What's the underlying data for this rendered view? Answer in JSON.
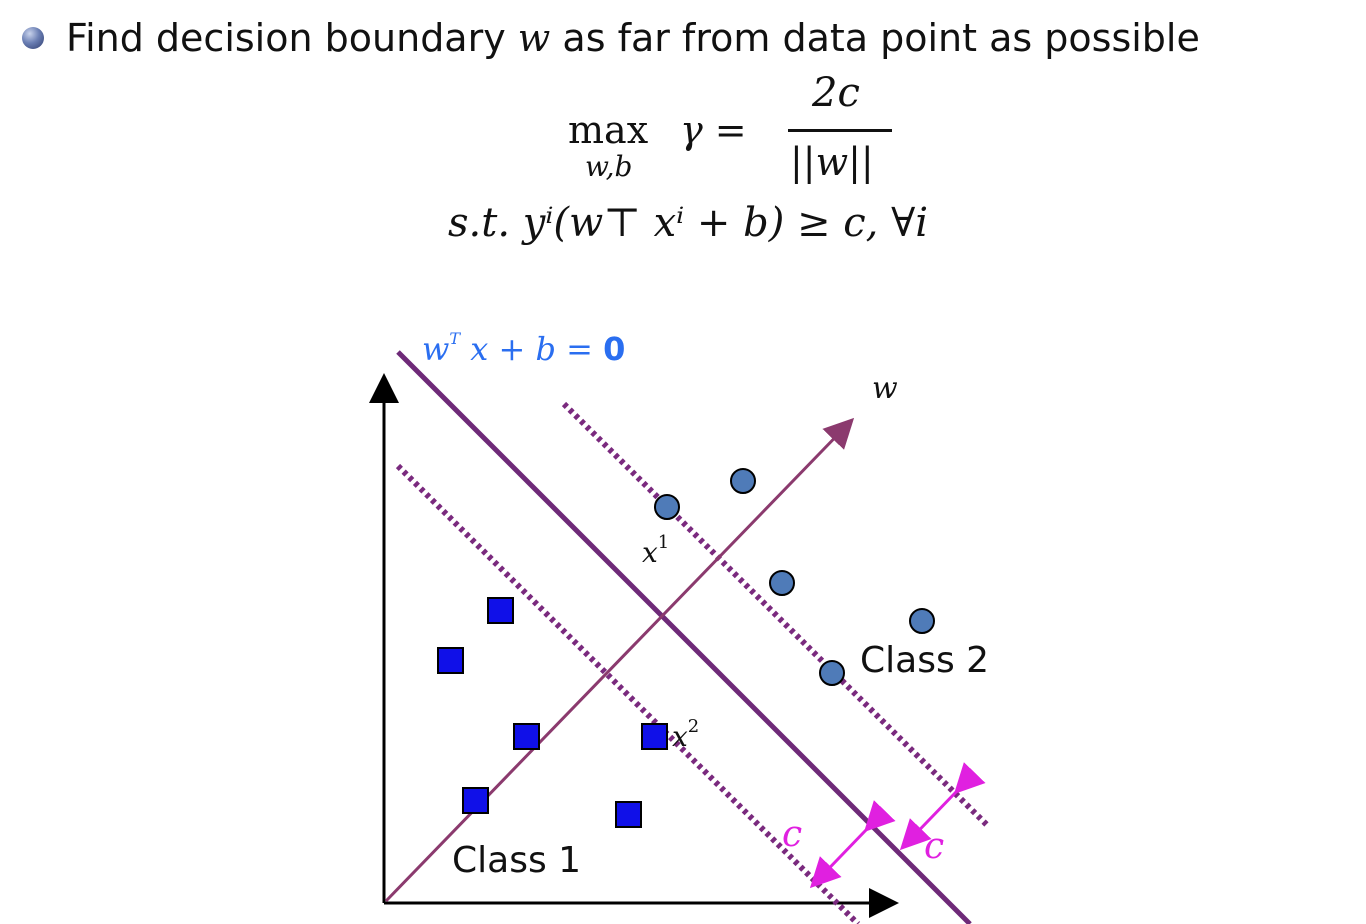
{
  "bullet": {
    "text_before": "Find decision boundary ",
    "var": "w",
    "text_after": " as far from data point as possible"
  },
  "formula": {
    "max": "max",
    "max_sub": "w,b",
    "gamma": "γ =",
    "numerator": "2c",
    "denominator": "||w||",
    "constraint": "s.t. yⁱ(w⊤ xⁱ + b) ≥ c, ∀i"
  },
  "diagram": {
    "boundary_label_w": "w",
    "boundary_label_T": "T",
    "boundary_label_rest": " x + b = ",
    "boundary_label_zero": "0",
    "w_axis_label": "w",
    "x1_label": "x",
    "x1_sup": "1",
    "x2_label": "x",
    "x2_sup": "2",
    "class1_label": "Class 1",
    "class2_label": "Class 2",
    "margin_label_left": "c",
    "margin_label_right": "c"
  },
  "colors": {
    "boundary": "#6e2a78",
    "w_arrow": "#8b3a6e",
    "margin_dots": "#7a2a7e",
    "square_fill": "#1010e8",
    "circle_fill": "#4f7bb8",
    "margin_arrow": "#e020e0",
    "label_blue": "#2a6ef0"
  },
  "icons": {
    "bullet": "sphere-bullet-icon",
    "class1_marker": "square-marker",
    "class2_marker": "circle-marker"
  }
}
